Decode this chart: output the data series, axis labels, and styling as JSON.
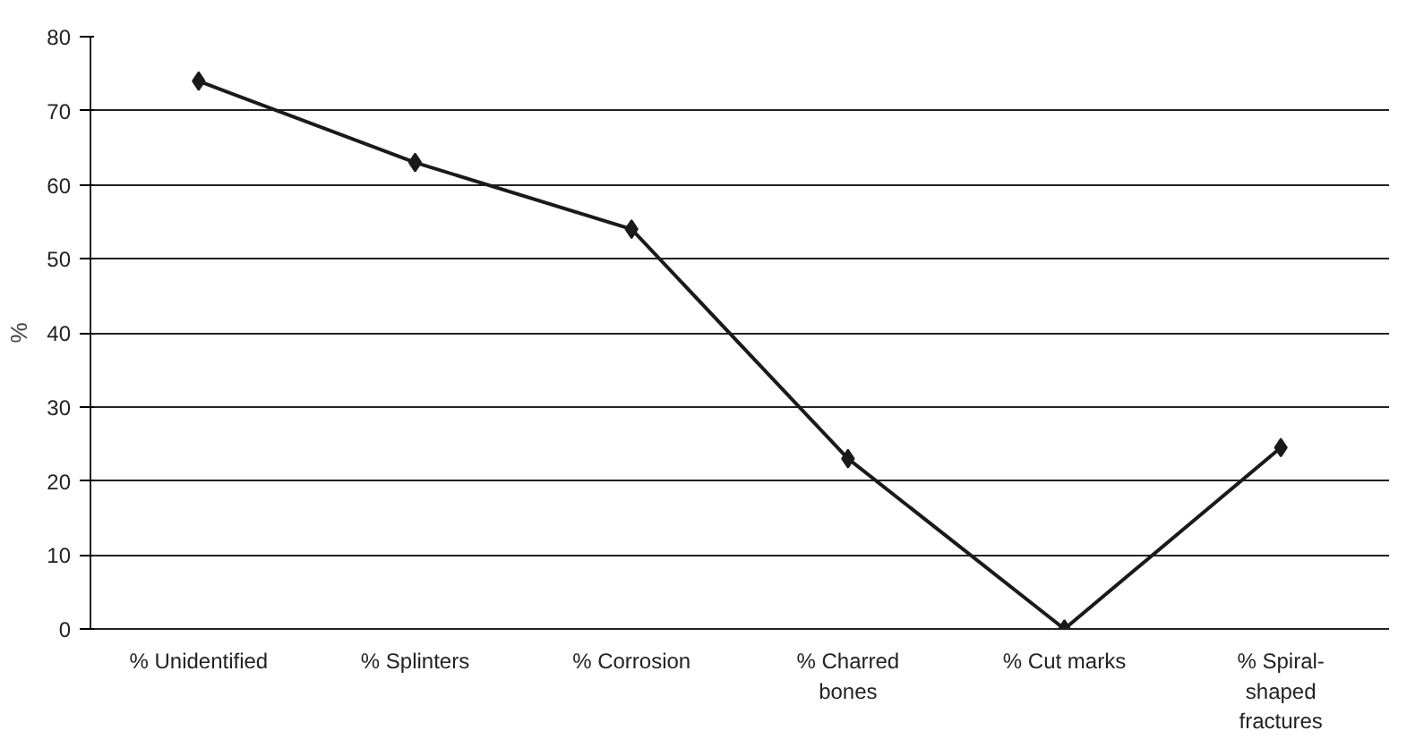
{
  "chart_data": {
    "type": "line",
    "ylabel": "%",
    "categories": [
      "% Unidentified",
      "% Splinters",
      "% Corrosion",
      "% Charred\nbones",
      "% Cut marks",
      "% Spiral-\nshaped\nfractures"
    ],
    "series": [
      {
        "color": "#1a1a1a",
        "values": [
          74,
          63,
          54,
          23,
          0,
          24.5
        ]
      }
    ],
    "ylim": [
      0,
      80
    ],
    "yticks": [
      0,
      10,
      20,
      30,
      40,
      50,
      60,
      70,
      80
    ],
    "grid": "y",
    "marker": "diamond",
    "line_style": "solid"
  }
}
